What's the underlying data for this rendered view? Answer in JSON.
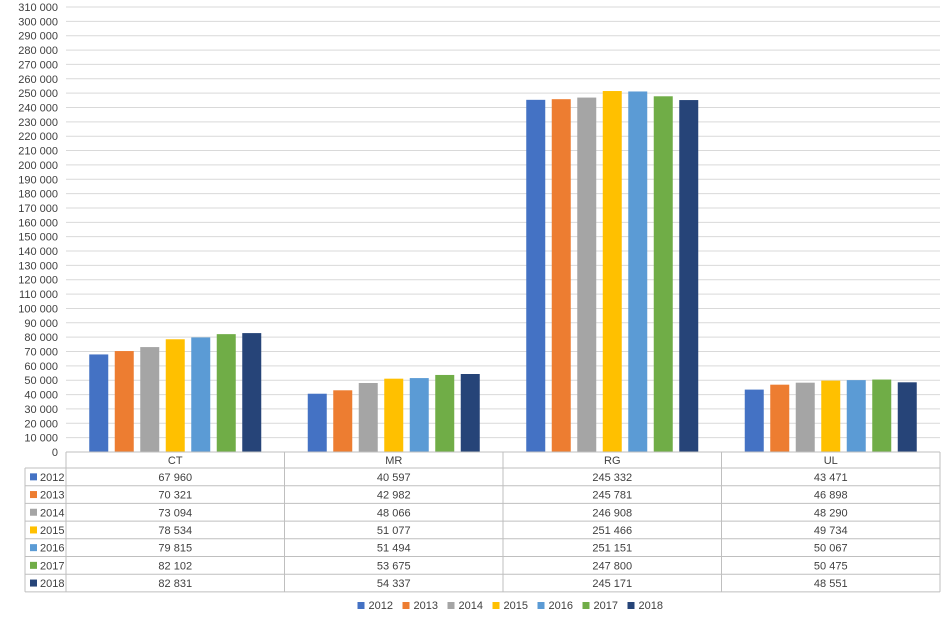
{
  "chart_data": {
    "type": "bar",
    "categories": [
      "CT",
      "MR",
      "RG",
      "UL"
    ],
    "series": [
      {
        "name": "2012",
        "color": "#4472C4",
        "values": [
          67960,
          40597,
          245332,
          43471
        ],
        "labels": [
          "67 960",
          "40 597",
          "245 332",
          "43 471"
        ]
      },
      {
        "name": "2013",
        "color": "#ED7D31",
        "values": [
          70321,
          42982,
          245781,
          46898
        ],
        "labels": [
          "70 321",
          "42 982",
          "245 781",
          "46 898"
        ]
      },
      {
        "name": "2014",
        "color": "#A5A5A5",
        "values": [
          73094,
          48066,
          246908,
          48290
        ],
        "labels": [
          "73 094",
          "48 066",
          "246 908",
          "48 290"
        ]
      },
      {
        "name": "2015",
        "color": "#FFC000",
        "values": [
          78534,
          51077,
          251466,
          49734
        ],
        "labels": [
          "78 534",
          "51 077",
          "251 466",
          "49 734"
        ]
      },
      {
        "name": "2016",
        "color": "#5B9BD5",
        "values": [
          79815,
          51494,
          251151,
          50067
        ],
        "labels": [
          "79 815",
          "51 494",
          "251 151",
          "50 067"
        ]
      },
      {
        "name": "2017",
        "color": "#70AD47",
        "values": [
          82102,
          53675,
          247800,
          50475
        ],
        "labels": [
          "82 102",
          "53 675",
          "247 800",
          "50 475"
        ]
      },
      {
        "name": "2018",
        "color": "#264478",
        "values": [
          82831,
          54337,
          245171,
          48551
        ],
        "labels": [
          "82 831",
          "54 337",
          "245 171",
          "48 551"
        ]
      }
    ],
    "ylim": [
      0,
      310000
    ],
    "ytick_step": 10000,
    "ytick_labels": [
      "0",
      "10 000",
      "20 000",
      "30 000",
      "40 000",
      "50 000",
      "60 000",
      "70 000",
      "80 000",
      "90 000",
      "100 000",
      "110 000",
      "120 000",
      "130 000",
      "140 000",
      "150 000",
      "160 000",
      "170 000",
      "180 000",
      "190 000",
      "200 000",
      "210 000",
      "220 000",
      "230 000",
      "240 000",
      "250 000",
      "260 000",
      "270 000",
      "280 000",
      "290 000",
      "300 000",
      "310 000"
    ],
    "legend_position": "bottom",
    "grid": true,
    "data_table": true
  }
}
